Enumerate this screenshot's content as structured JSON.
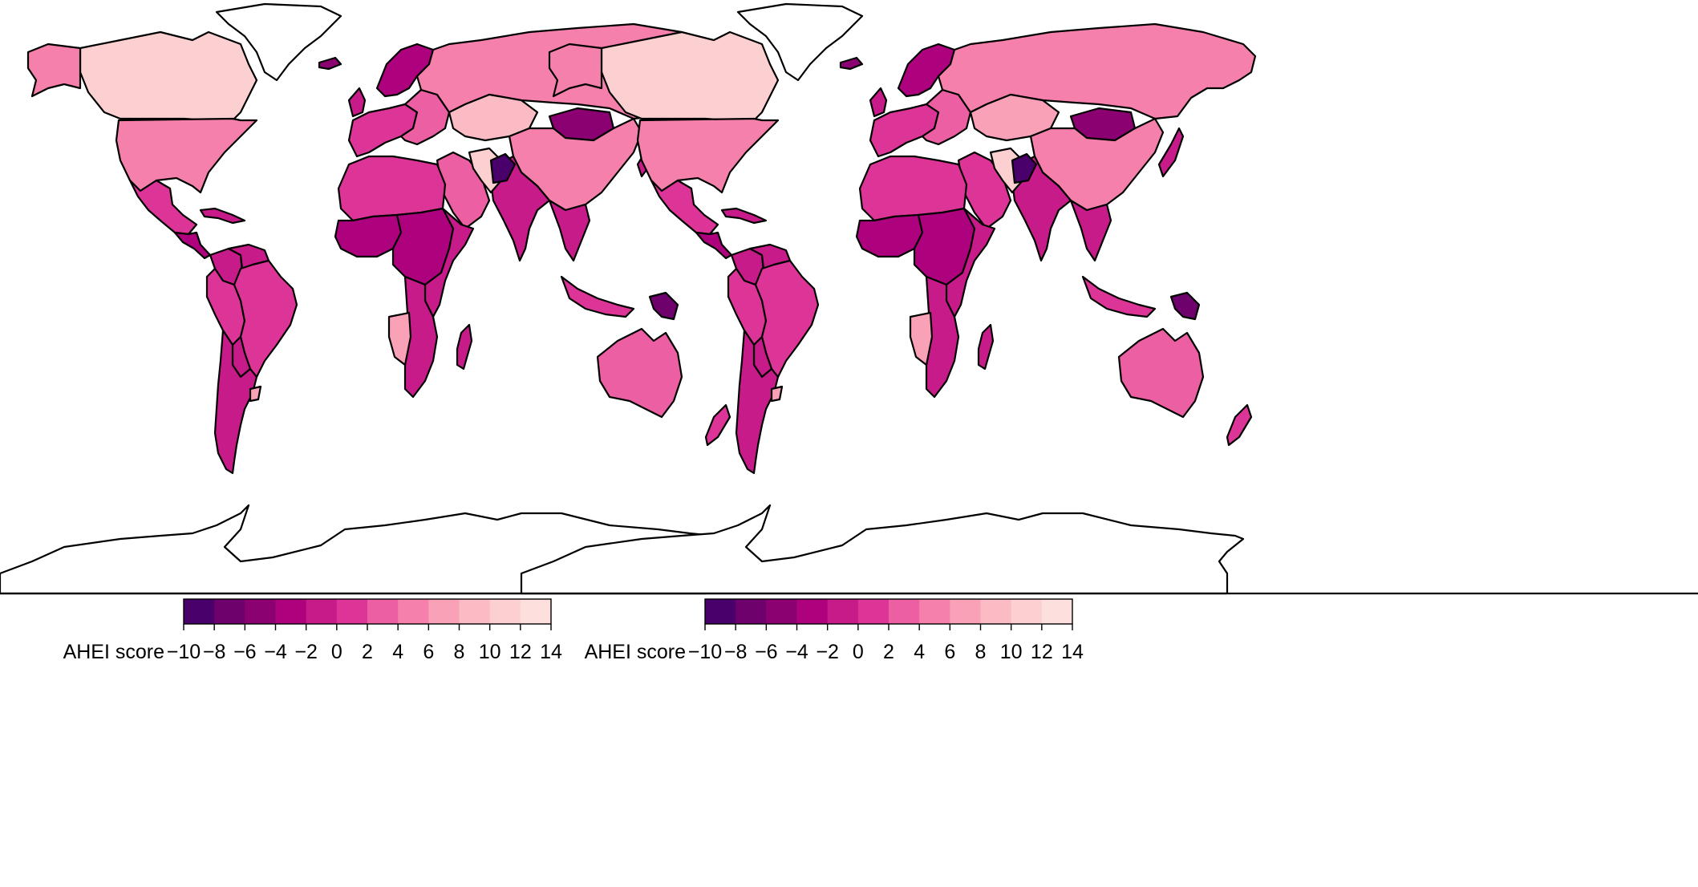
{
  "legend_scale": {
    "title": "AHEI score",
    "ticks": [
      "−10",
      "−8",
      "−6",
      "−4",
      "−2",
      "0",
      "2",
      "4",
      "6",
      "8",
      "10",
      "12",
      "14"
    ],
    "breaks": [
      -10,
      -8,
      -6,
      -4,
      -2,
      0,
      2,
      4,
      6,
      8,
      10,
      12,
      14
    ],
    "colors": [
      "#49006a",
      "#6e016b",
      "#8c0172",
      "#ae017e",
      "#c81b8a",
      "#dd3497",
      "#ec5fa3",
      "#f580ac",
      "#f9a1b7",
      "#fbbbc4",
      "#fcd0d0",
      "#fde0dd"
    ]
  },
  "maps": [
    {
      "legend_title": "AHEI score",
      "regions": [
        {
          "name": "north-america-north",
          "value": 11
        },
        {
          "name": "greenland",
          "value": null
        },
        {
          "name": "alaska",
          "value": 5
        },
        {
          "name": "usa",
          "value": 4.5
        },
        {
          "name": "mexico",
          "value": 1
        },
        {
          "name": "central-america",
          "value": -3
        },
        {
          "name": "caribbean",
          "value": -1
        },
        {
          "name": "colombia",
          "value": -2
        },
        {
          "name": "venezuela",
          "value": -1
        },
        {
          "name": "ecuador-peru",
          "value": 1
        },
        {
          "name": "brazil",
          "value": 0.5
        },
        {
          "name": "bolivia",
          "value": -1.5
        },
        {
          "name": "argentina-chile",
          "value": -1.5
        },
        {
          "name": "uruguay",
          "value": 7
        },
        {
          "name": "iceland",
          "value": -5
        },
        {
          "name": "scandinavia",
          "value": -4
        },
        {
          "name": "uk-ireland",
          "value": -1
        },
        {
          "name": "western-europe",
          "value": 1
        },
        {
          "name": "eastern-europe",
          "value": 3
        },
        {
          "name": "russia",
          "value": 4.5
        },
        {
          "name": "kazakhstan-central-asia",
          "value": 8
        },
        {
          "name": "mongolia",
          "value": -6
        },
        {
          "name": "china",
          "value": 5
        },
        {
          "name": "japan",
          "value": -2
        },
        {
          "name": "india",
          "value": -1
        },
        {
          "name": "southeast-asia",
          "value": -2
        },
        {
          "name": "indonesia",
          "value": 0
        },
        {
          "name": "papua-new-guinea",
          "value": -8
        },
        {
          "name": "australia",
          "value": 2
        },
        {
          "name": "new-zealand",
          "value": 0
        },
        {
          "name": "middle-east",
          "value": 2
        },
        {
          "name": "iran",
          "value": 11
        },
        {
          "name": "afghanistan",
          "value": -9
        },
        {
          "name": "north-africa",
          "value": 1
        },
        {
          "name": "west-africa",
          "value": -3
        },
        {
          "name": "central-africa",
          "value": -4
        },
        {
          "name": "east-africa",
          "value": -1
        },
        {
          "name": "southern-africa",
          "value": -2
        },
        {
          "name": "namibia-botswana",
          "value": 7
        },
        {
          "name": "madagascar",
          "value": -1
        },
        {
          "name": "antarctica",
          "value": null
        }
      ]
    },
    {
      "legend_title": "AHEI score",
      "regions": [
        {
          "name": "north-america-north",
          "value": 11
        },
        {
          "name": "greenland",
          "value": null
        },
        {
          "name": "alaska",
          "value": 5
        },
        {
          "name": "usa",
          "value": 4.5
        },
        {
          "name": "mexico",
          "value": 1
        },
        {
          "name": "central-america",
          "value": -3
        },
        {
          "name": "caribbean",
          "value": -1
        },
        {
          "name": "colombia",
          "value": -2
        },
        {
          "name": "venezuela",
          "value": -1
        },
        {
          "name": "ecuador-peru",
          "value": 1
        },
        {
          "name": "brazil",
          "value": 0.5
        },
        {
          "name": "bolivia",
          "value": -1.5
        },
        {
          "name": "argentina-chile",
          "value": -1.5
        },
        {
          "name": "uruguay",
          "value": 7
        },
        {
          "name": "iceland",
          "value": -5
        },
        {
          "name": "scandinavia",
          "value": -4
        },
        {
          "name": "uk-ireland",
          "value": -1
        },
        {
          "name": "western-europe",
          "value": 1
        },
        {
          "name": "eastern-europe",
          "value": 3
        },
        {
          "name": "russia",
          "value": 4.5
        },
        {
          "name": "kazakhstan-central-asia",
          "value": 7
        },
        {
          "name": "mongolia",
          "value": -6
        },
        {
          "name": "china",
          "value": 5
        },
        {
          "name": "japan",
          "value": -2
        },
        {
          "name": "india",
          "value": -1
        },
        {
          "name": "southeast-asia",
          "value": -2
        },
        {
          "name": "indonesia",
          "value": 0
        },
        {
          "name": "papua-new-guinea",
          "value": -8
        },
        {
          "name": "australia",
          "value": 2
        },
        {
          "name": "new-zealand",
          "value": 0
        },
        {
          "name": "middle-east",
          "value": 1
        },
        {
          "name": "iran",
          "value": 11
        },
        {
          "name": "afghanistan",
          "value": -9
        },
        {
          "name": "north-africa",
          "value": 1
        },
        {
          "name": "west-africa",
          "value": -3
        },
        {
          "name": "central-africa",
          "value": -4
        },
        {
          "name": "east-africa",
          "value": -1
        },
        {
          "name": "southern-africa",
          "value": -2
        },
        {
          "name": "namibia-botswana",
          "value": 7
        },
        {
          "name": "madagascar",
          "value": -1
        },
        {
          "name": "antarctica",
          "value": null
        }
      ]
    }
  ]
}
